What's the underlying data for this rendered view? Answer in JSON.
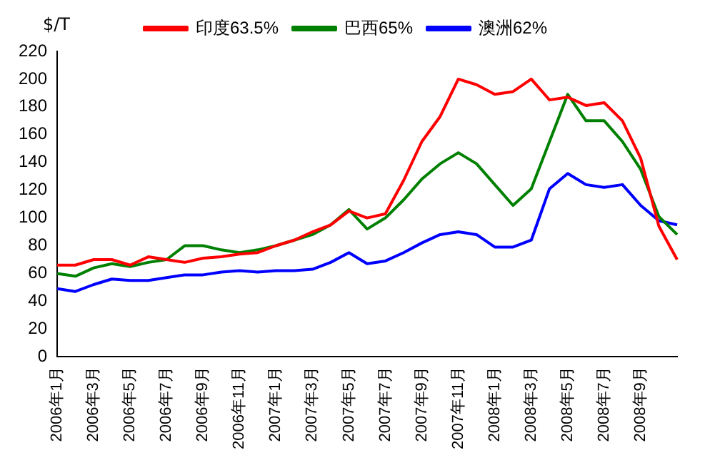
{
  "chart_data": {
    "type": "line",
    "ylabel": "$/T",
    "categories": [
      "2006年1月",
      null,
      "2006年3月",
      null,
      "2006年5月",
      null,
      "2006年7月",
      null,
      "2006年9月",
      null,
      "2006年11月",
      null,
      "2007年1月",
      null,
      "2007年3月",
      null,
      "2007年5月",
      null,
      "2007年7月",
      null,
      "2007年9月",
      null,
      "2007年11月",
      null,
      "2008年1月",
      null,
      "2008年3月",
      null,
      "2008年5月",
      null,
      "2008年7月",
      null,
      "2008年9月",
      null,
      null
    ],
    "series": [
      {
        "name": "印度63.5%",
        "color": "#ff0000",
        "values": [
          66,
          66,
          70,
          70,
          66,
          72,
          70,
          68,
          71,
          72,
          74,
          75,
          80,
          84,
          90,
          95,
          105,
          100,
          103,
          127,
          155,
          173,
          200,
          196,
          189,
          191,
          200,
          185,
          187,
          181,
          183,
          170,
          143,
          94,
          70
        ]
      },
      {
        "name": "巴西65%",
        "color": "#008000",
        "values": [
          60,
          58,
          64,
          67,
          65,
          68,
          70,
          80,
          80,
          77,
          75,
          77,
          80,
          84,
          88,
          95,
          106,
          92,
          100,
          113,
          128,
          139,
          147,
          139,
          124,
          109,
          121,
          155,
          189,
          170,
          170,
          155,
          135,
          101,
          88
        ]
      },
      {
        "name": "澳洲62%",
        "color": "#0000ff",
        "values": [
          49,
          47,
          52,
          56,
          55,
          55,
          57,
          59,
          59,
          61,
          62,
          61,
          62,
          62,
          63,
          68,
          75,
          67,
          69,
          75,
          82,
          88,
          90,
          88,
          79,
          79,
          84,
          121,
          132,
          124,
          122,
          124,
          109,
          98,
          95
        ]
      }
    ],
    "ylim": [
      0,
      220
    ],
    "yticks": [
      0,
      20,
      40,
      60,
      80,
      100,
      120,
      140,
      160,
      180,
      200,
      220
    ],
    "grid": false,
    "legend": "top",
    "marker": "none",
    "line_style": "solid"
  }
}
